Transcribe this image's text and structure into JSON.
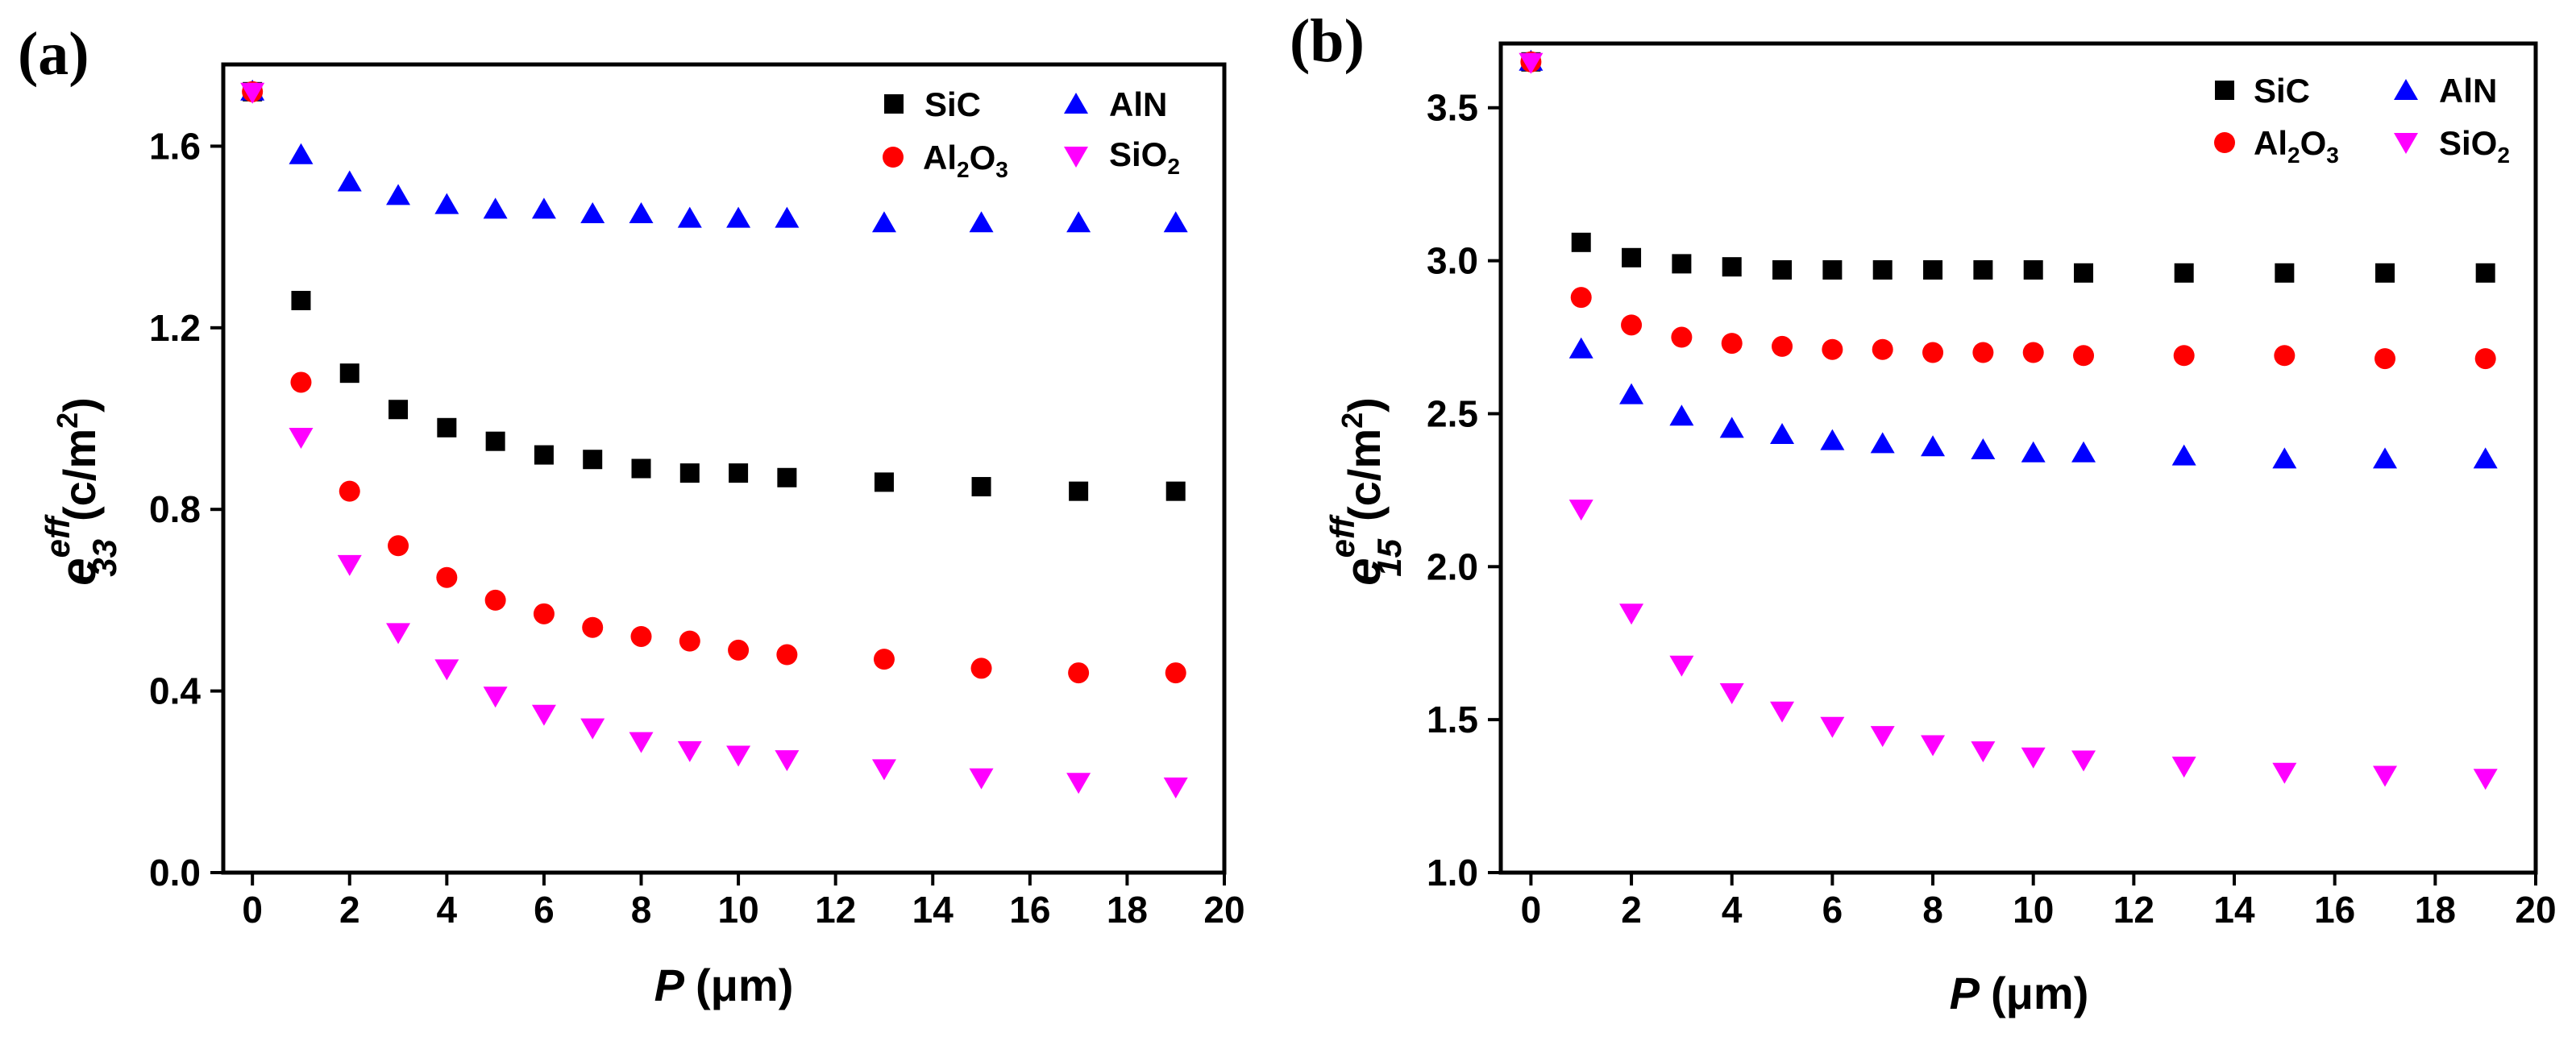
{
  "chart_data": [
    {
      "panel": "(a)",
      "type": "scatter",
      "xlabel_symbol": "P",
      "xlabel_unit": "(μm)",
      "ylabel_main": "e",
      "ylabel_sup": "eff",
      "ylabel_sub": "33",
      "ylabel_unit": "(c/m",
      "ylabel_unit_exp": "2",
      "ylabel_unit_close": ")",
      "xlim": [
        -0.6,
        20
      ],
      "ylim": [
        0,
        1.78
      ],
      "xticks": [
        0,
        2,
        4,
        6,
        8,
        10,
        12,
        14,
        16,
        18,
        20
      ],
      "xtick_labels": [
        "0",
        "2",
        "4",
        "6",
        "8",
        "10",
        "12",
        "14",
        "16",
        "18",
        "20"
      ],
      "yticks": [
        0,
        0.4,
        0.8,
        1.2,
        1.6
      ],
      "ytick_labels": [
        "0.0",
        "0.4",
        "0.8",
        "1.2",
        "1.6"
      ],
      "legend": "top-right",
      "x": [
        0,
        1,
        2,
        3,
        4,
        5,
        6,
        7,
        8,
        9,
        10,
        11,
        13,
        15,
        17,
        19
      ],
      "series": [
        {
          "name": "SiC",
          "name_base": "SiC",
          "marker": "square",
          "color": "#000000",
          "values": [
            1.72,
            1.26,
            1.1,
            1.02,
            0.98,
            0.95,
            0.92,
            0.91,
            0.89,
            0.88,
            0.88,
            0.87,
            0.86,
            0.85,
            0.84,
            0.84
          ]
        },
        {
          "name": "AlN",
          "name_base": "AlN",
          "marker": "triangle-up",
          "color": "#0000ff",
          "values": [
            1.72,
            1.58,
            1.52,
            1.49,
            1.47,
            1.46,
            1.46,
            1.45,
            1.45,
            1.44,
            1.44,
            1.44,
            1.43,
            1.43,
            1.43,
            1.43
          ]
        },
        {
          "name": "Al2O3",
          "name_base": "Al",
          "name_sub1": "2",
          "name_mid": "O",
          "name_sub2": "3",
          "marker": "circle",
          "color": "#ff0000",
          "values": [
            1.72,
            1.08,
            0.84,
            0.72,
            0.65,
            0.6,
            0.57,
            0.54,
            0.52,
            0.51,
            0.49,
            0.48,
            0.47,
            0.45,
            0.44,
            0.44
          ]
        },
        {
          "name": "SiO2",
          "name_base": "SiO",
          "name_sub1": "2",
          "marker": "triangle-down",
          "color": "#ff00ff",
          "values": [
            1.72,
            0.96,
            0.68,
            0.53,
            0.45,
            0.39,
            0.35,
            0.32,
            0.29,
            0.27,
            0.26,
            0.25,
            0.23,
            0.21,
            0.2,
            0.19
          ]
        }
      ]
    },
    {
      "panel": "(b)",
      "type": "scatter",
      "xlabel_symbol": "P",
      "xlabel_unit": "(μm)",
      "ylabel_main": "e",
      "ylabel_sup": "eff",
      "ylabel_sub": "15",
      "ylabel_unit": "(c/m",
      "ylabel_unit_exp": "2",
      "ylabel_unit_close": ")",
      "xlim": [
        -0.6,
        20
      ],
      "ylim": [
        1.0,
        3.71
      ],
      "xticks": [
        0,
        2,
        4,
        6,
        8,
        10,
        12,
        14,
        16,
        18,
        20
      ],
      "xtick_labels": [
        "0",
        "2",
        "4",
        "6",
        "8",
        "10",
        "12",
        "14",
        "16",
        "18",
        "20"
      ],
      "yticks": [
        1.0,
        1.5,
        2.0,
        2.5,
        3.0,
        3.5
      ],
      "ytick_labels": [
        "1.0",
        "1.5",
        "2.0",
        "2.5",
        "3.0",
        "3.5"
      ],
      "legend": "top-right",
      "x": [
        0,
        1,
        2,
        3,
        4,
        5,
        6,
        7,
        8,
        9,
        10,
        11,
        13,
        15,
        17,
        19
      ],
      "series": [
        {
          "name": "SiC",
          "name_base": "SiC",
          "marker": "square",
          "color": "#000000",
          "values": [
            3.65,
            3.06,
            3.01,
            2.99,
            2.98,
            2.97,
            2.97,
            2.97,
            2.97,
            2.97,
            2.97,
            2.96,
            2.96,
            2.96,
            2.96,
            2.96
          ]
        },
        {
          "name": "AlN",
          "name_base": "AlN",
          "marker": "triangle-up",
          "color": "#0000ff",
          "values": [
            3.65,
            2.71,
            2.56,
            2.49,
            2.45,
            2.43,
            2.41,
            2.4,
            2.39,
            2.38,
            2.37,
            2.37,
            2.36,
            2.35,
            2.35,
            2.35
          ]
        },
        {
          "name": "Al2O3",
          "name_base": "Al",
          "name_sub1": "2",
          "name_mid": "O",
          "name_sub2": "3",
          "marker": "circle",
          "color": "#ff0000",
          "values": [
            3.65,
            2.88,
            2.79,
            2.75,
            2.73,
            2.72,
            2.71,
            2.71,
            2.7,
            2.7,
            2.7,
            2.69,
            2.69,
            2.69,
            2.68,
            2.68
          ]
        },
        {
          "name": "SiO2",
          "name_base": "SiO",
          "name_sub1": "2",
          "marker": "triangle-down",
          "color": "#ff00ff",
          "values": [
            3.65,
            2.19,
            1.85,
            1.68,
            1.59,
            1.53,
            1.48,
            1.45,
            1.42,
            1.4,
            1.38,
            1.37,
            1.35,
            1.33,
            1.32,
            1.31
          ]
        }
      ]
    }
  ]
}
